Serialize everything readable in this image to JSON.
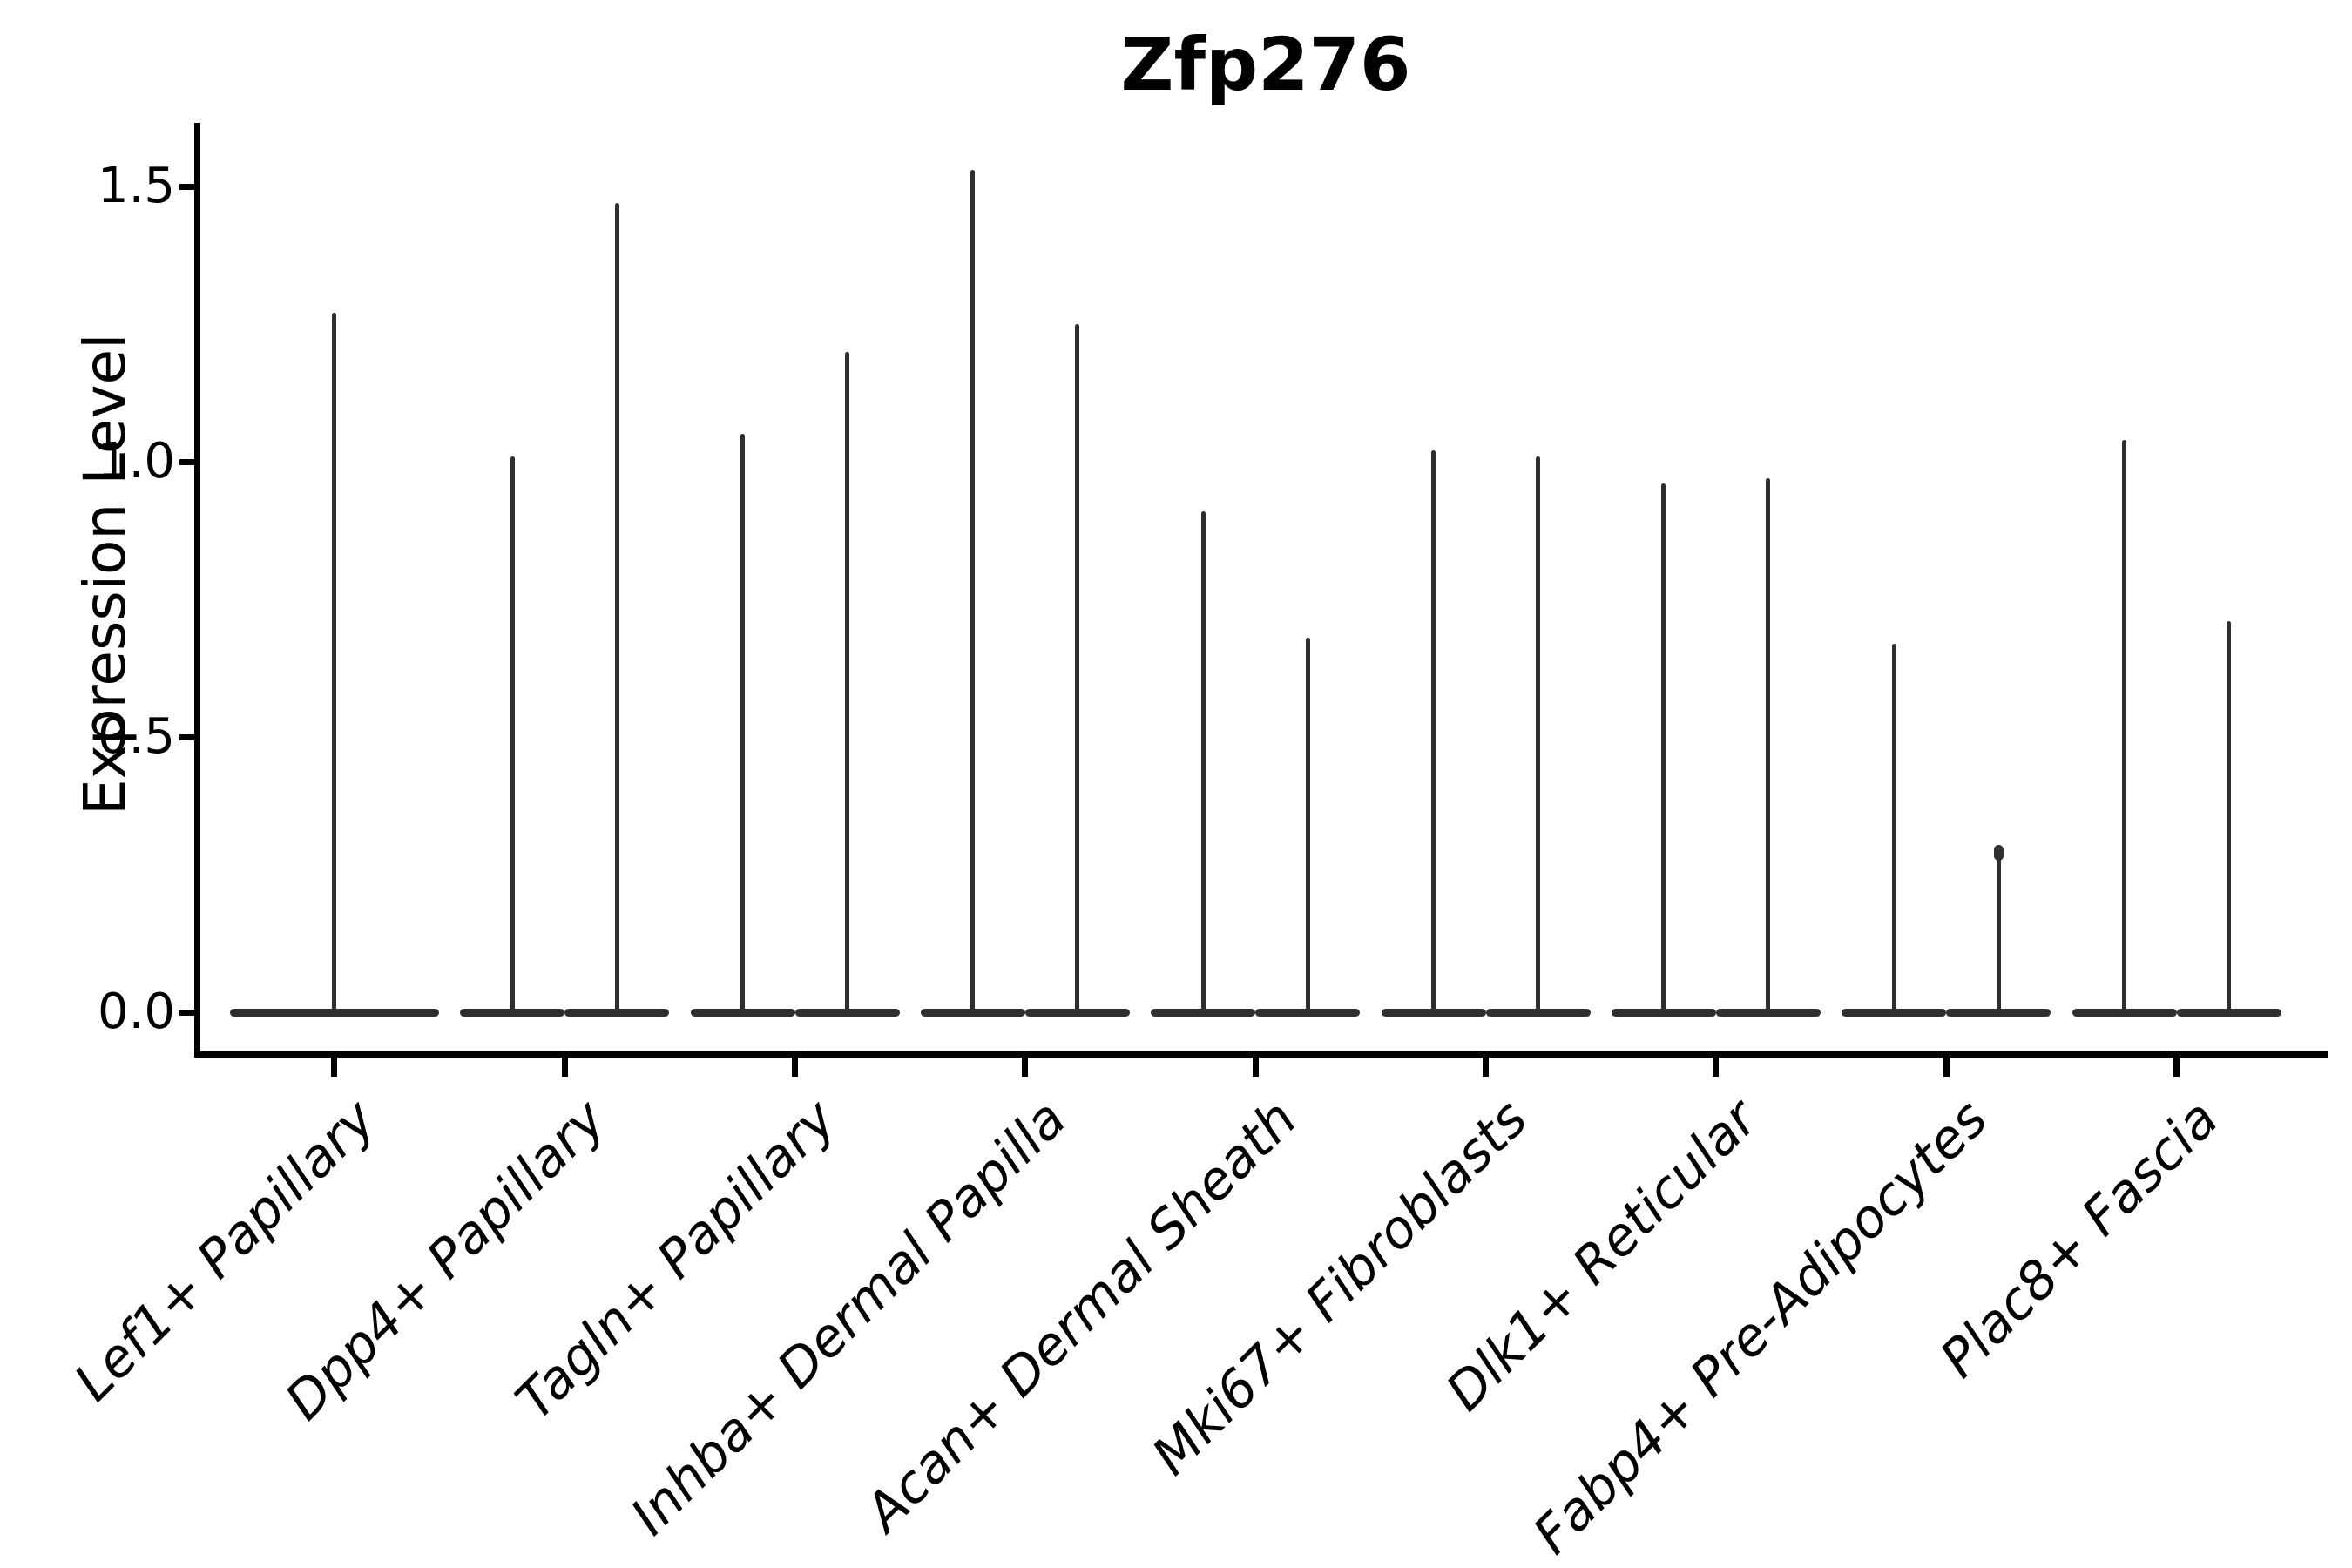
{
  "chart_data": {
    "type": "violin",
    "title": "Zfp276",
    "ylabel": "Expression Level",
    "xlabel": "",
    "yticks": [
      0.0,
      0.5,
      1.0,
      1.5
    ],
    "ylim": [
      -0.08,
      1.62
    ],
    "grid": false,
    "legend": null,
    "spines": [
      "left",
      "bottom"
    ],
    "x_tick_label_rotation": 45,
    "x_tick_label_style": "italic",
    "violin_shape": "dense mass at 0 (flat horizontal body) with a thin vertical spike up to the maximum expression value",
    "categories": [
      {
        "label": "Lef1+ Papillary",
        "violins": [
          {
            "max": 1.27,
            "full_width": true
          }
        ]
      },
      {
        "label": "Dpp4+ Papillary",
        "violins": [
          {
            "max": 1.01
          },
          {
            "max": 1.47
          }
        ]
      },
      {
        "label": "Tagln+ Papillary",
        "violins": [
          {
            "max": 1.05
          },
          {
            "max": 1.2
          }
        ]
      },
      {
        "label": "Inhba+ Dermal Papilla",
        "violins": [
          {
            "max": 1.53
          },
          {
            "max": 1.25
          }
        ]
      },
      {
        "label": "Acan+ Dermal Sheath",
        "violins": [
          {
            "max": 0.91
          },
          {
            "max": 0.68
          }
        ]
      },
      {
        "label": "Mki67+ Fibroblasts",
        "violins": [
          {
            "max": 1.02
          },
          {
            "max": 1.01
          }
        ]
      },
      {
        "label": "Dlk1+ Reticular",
        "violins": [
          {
            "max": 0.96
          },
          {
            "max": 0.97
          }
        ]
      },
      {
        "label": "Fabp4+ Pre-Adipocytes",
        "violins": [
          {
            "max": 0.67
          },
          {
            "max": 0.3,
            "tip_bump": true
          }
        ]
      },
      {
        "label": "Plac8+ Fascia",
        "violins": [
          {
            "max": 1.04
          },
          {
            "max": 0.71
          }
        ]
      }
    ],
    "colors": {
      "violin": "#2f2f2f",
      "axis": "#000000",
      "text": "#000000",
      "background": "#ffffff"
    }
  }
}
